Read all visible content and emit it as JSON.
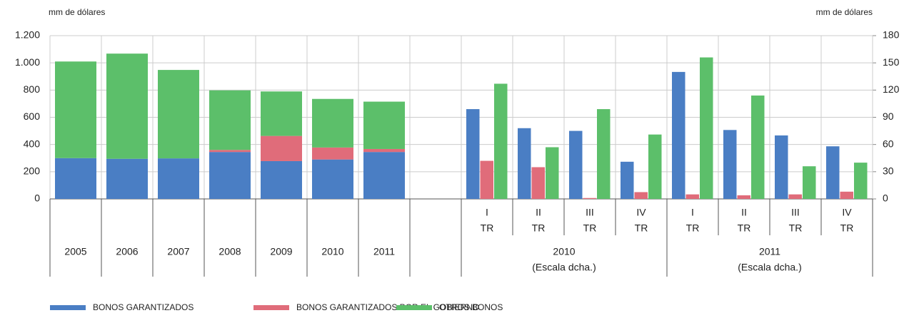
{
  "chart_data": {
    "type": "bar",
    "y_label": "mm de dólares",
    "y2_label": "mm de dólares",
    "ylim": [
      0,
      1200
    ],
    "yticks": [
      0,
      200,
      400,
      600,
      800,
      {
        "value": 1000,
        "label": "1.000"
      },
      {
        "value": 1200,
        "label": "1.200"
      }
    ],
    "y2lim": [
      0,
      180
    ],
    "y2ticks": [
      0,
      30,
      60,
      90,
      120,
      150,
      180
    ],
    "grid": true,
    "categories": [
      "2005",
      "2006",
      "2007",
      "2008",
      "2009",
      "2010",
      "2011"
    ],
    "quarters": [
      [
        "I",
        "TR"
      ],
      [
        "II",
        "TR"
      ],
      [
        "III",
        "TR"
      ],
      [
        "IV",
        "TR"
      ],
      [
        "I",
        "TR"
      ],
      [
        "II",
        "TR"
      ],
      [
        "III",
        "TR"
      ],
      [
        "IV",
        "TR"
      ]
    ],
    "quarter_groups": [
      {
        "label": "2010",
        "note": "(Escala dcha.)"
      },
      {
        "label": "2011",
        "note": "(Escala dcha.)"
      }
    ],
    "series": [
      {
        "name": "BONOS GARANTIZADOS",
        "color": "#4a7ec4",
        "values": [
          300,
          295,
          298,
          345,
          278,
          290,
          345
        ],
        "quarterly_values": [
          99,
          78,
          75,
          41,
          140,
          76,
          70,
          58
        ]
      },
      {
        "name": "BONOS GARANTIZADOS POR EL GOBIERNO",
        "color": "#e06c7a",
        "values": [
          0,
          0,
          0,
          15,
          185,
          88,
          22
        ],
        "quarterly_values": [
          42,
          35,
          1,
          7.5,
          5,
          4,
          5,
          8
        ]
      },
      {
        "name": "OTROS BONOS",
        "color": "#5cbf6a",
        "values": [
          710,
          773,
          650,
          438,
          327,
          357,
          348
        ],
        "quarterly_values": [
          127,
          57,
          99,
          71,
          156,
          114,
          36,
          40
        ]
      }
    ]
  }
}
